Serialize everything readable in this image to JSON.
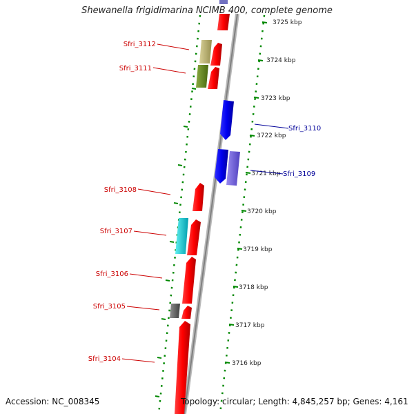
{
  "title": "Shewanella frigidimarina NCIMB 400, complete genome",
  "accession": "Accession: NC_008345",
  "topology": "Topology: circular; Length: 4,845,257 bp; Genes: 4,161",
  "scale_labels": [
    "3725 kbp",
    "3724 kbp",
    "3723 kbp",
    "3722 kbp",
    "3721 kbp",
    "3720 kbp",
    "3719 kbp",
    "3718 kbp",
    "3717 kbp",
    "3716 kbp"
  ],
  "gene_labels": [
    {
      "text": "Sfri_3112",
      "strand": "forward"
    },
    {
      "text": "Sfri_3111",
      "strand": "forward"
    },
    {
      "text": "Sfri_3110",
      "strand": "reverse"
    },
    {
      "text": "Sfri_3109",
      "strand": "reverse"
    },
    {
      "text": "Sfri_3108",
      "strand": "forward"
    },
    {
      "text": "Sfri_3107",
      "strand": "forward"
    },
    {
      "text": "Sfri_3106",
      "strand": "forward"
    },
    {
      "text": "Sfri_3105",
      "strand": "forward"
    },
    {
      "text": "Sfri_3104",
      "strand": "forward"
    }
  ],
  "colors": {
    "forward_cds": "#ff0000",
    "reverse_cds": "#0000ee",
    "reverse_cds_light": "#7060e0",
    "cyan_feature": "#00c8d0",
    "olive_feature": "#b8b070",
    "green_feature": "#6a8a20",
    "gray_feature": "#606060",
    "backbone": "#909090",
    "ticks": "#008800",
    "forward_label": "#cc0000",
    "reverse_label": "#000099"
  }
}
